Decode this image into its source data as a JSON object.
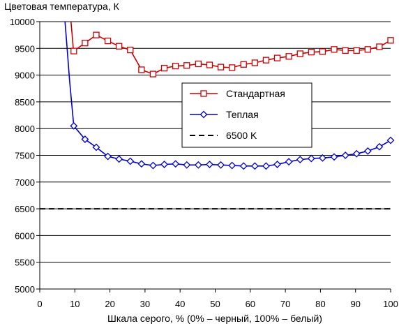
{
  "chart_data": {
    "type": "line",
    "ylabel": "Цветовая температура, К",
    "xlabel": "Шкала серого, % (0% – черный, 100% – белый)",
    "xlim": [
      0,
      100
    ],
    "ylim": [
      5000,
      10000
    ],
    "x_ticks": [
      0,
      10,
      20,
      30,
      40,
      50,
      60,
      70,
      80,
      90,
      100
    ],
    "y_ticks": [
      5000,
      5500,
      6000,
      6500,
      7000,
      7500,
      8000,
      8500,
      9000,
      9500,
      10000
    ],
    "grid": "horizontal",
    "legend_position": "center-right",
    "series": [
      {
        "name": "Стандартная",
        "color": "#cc0000",
        "marker": "square",
        "line_x": [
          8.9,
          9.3,
          9.6
        ],
        "line_y": [
          10000,
          9700,
          9450
        ],
        "x": [
          9.7,
          12.9,
          16.1,
          19.4,
          22.6,
          25.8,
          29.0,
          32.3,
          35.5,
          38.7,
          41.9,
          45.2,
          48.4,
          51.6,
          54.8,
          58.1,
          61.3,
          64.5,
          67.7,
          71.0,
          74.2,
          77.4,
          80.6,
          83.9,
          87.1,
          90.3,
          93.5,
          96.8,
          100
        ],
        "y": [
          9450,
          9600,
          9750,
          9640,
          9540,
          9470,
          9100,
          9020,
          9130,
          9170,
          9180,
          9210,
          9190,
          9150,
          9140,
          9200,
          9230,
          9280,
          9320,
          9350,
          9400,
          9430,
          9440,
          9480,
          9460,
          9460,
          9480,
          9530,
          9650
        ]
      },
      {
        "name": "Теплая",
        "color": "#0000cc",
        "marker": "diamond",
        "line_x": [
          7.2,
          7.8,
          8.5,
          9.2
        ],
        "line_y": [
          10000,
          9500,
          8900,
          8400
        ],
        "x": [
          9.7,
          12.9,
          16.1,
          19.4,
          22.6,
          25.8,
          29.0,
          32.3,
          35.5,
          38.7,
          41.9,
          45.2,
          48.4,
          51.6,
          54.8,
          58.1,
          61.3,
          64.5,
          67.7,
          71.0,
          74.2,
          77.4,
          80.6,
          83.9,
          87.1,
          90.3,
          93.5,
          96.8,
          100
        ],
        "y": [
          8050,
          7800,
          7650,
          7480,
          7430,
          7390,
          7340,
          7310,
          7330,
          7340,
          7320,
          7320,
          7330,
          7320,
          7310,
          7300,
          7300,
          7300,
          7330,
          7380,
          7420,
          7440,
          7450,
          7470,
          7500,
          7530,
          7580,
          7660,
          7780
        ]
      },
      {
        "name": "6500 K",
        "color": "#000000",
        "dash": "dashed",
        "x": [
          0,
          100
        ],
        "y": [
          6500,
          6500
        ]
      }
    ]
  }
}
